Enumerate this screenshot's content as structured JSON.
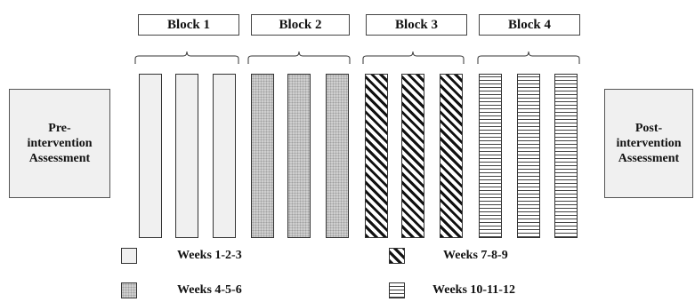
{
  "blocks": [
    {
      "label": "Block 1",
      "fill": "plain"
    },
    {
      "label": "Block 2",
      "fill": "dotted"
    },
    {
      "label": "Block 3",
      "fill": "diagonal"
    },
    {
      "label": "Block 4",
      "fill": "horizontal"
    }
  ],
  "assessments": {
    "pre": [
      "Pre-",
      "intervention",
      "Assessment"
    ],
    "post": [
      "Post-",
      "intervention",
      "Assessment"
    ]
  },
  "legend": [
    {
      "label": "Weeks 1-2-3",
      "fill": "plain"
    },
    {
      "label": "Weeks 4-5-6",
      "fill": "dotted"
    },
    {
      "label": "Weeks 7-8-9",
      "fill": "diagonal"
    },
    {
      "label": "Weeks 10-11-12",
      "fill": "horizontal"
    }
  ],
  "colors": {
    "border": "#333333",
    "light_fill": "#f0f0f0",
    "dotted_fill": "#cfcfcf"
  }
}
